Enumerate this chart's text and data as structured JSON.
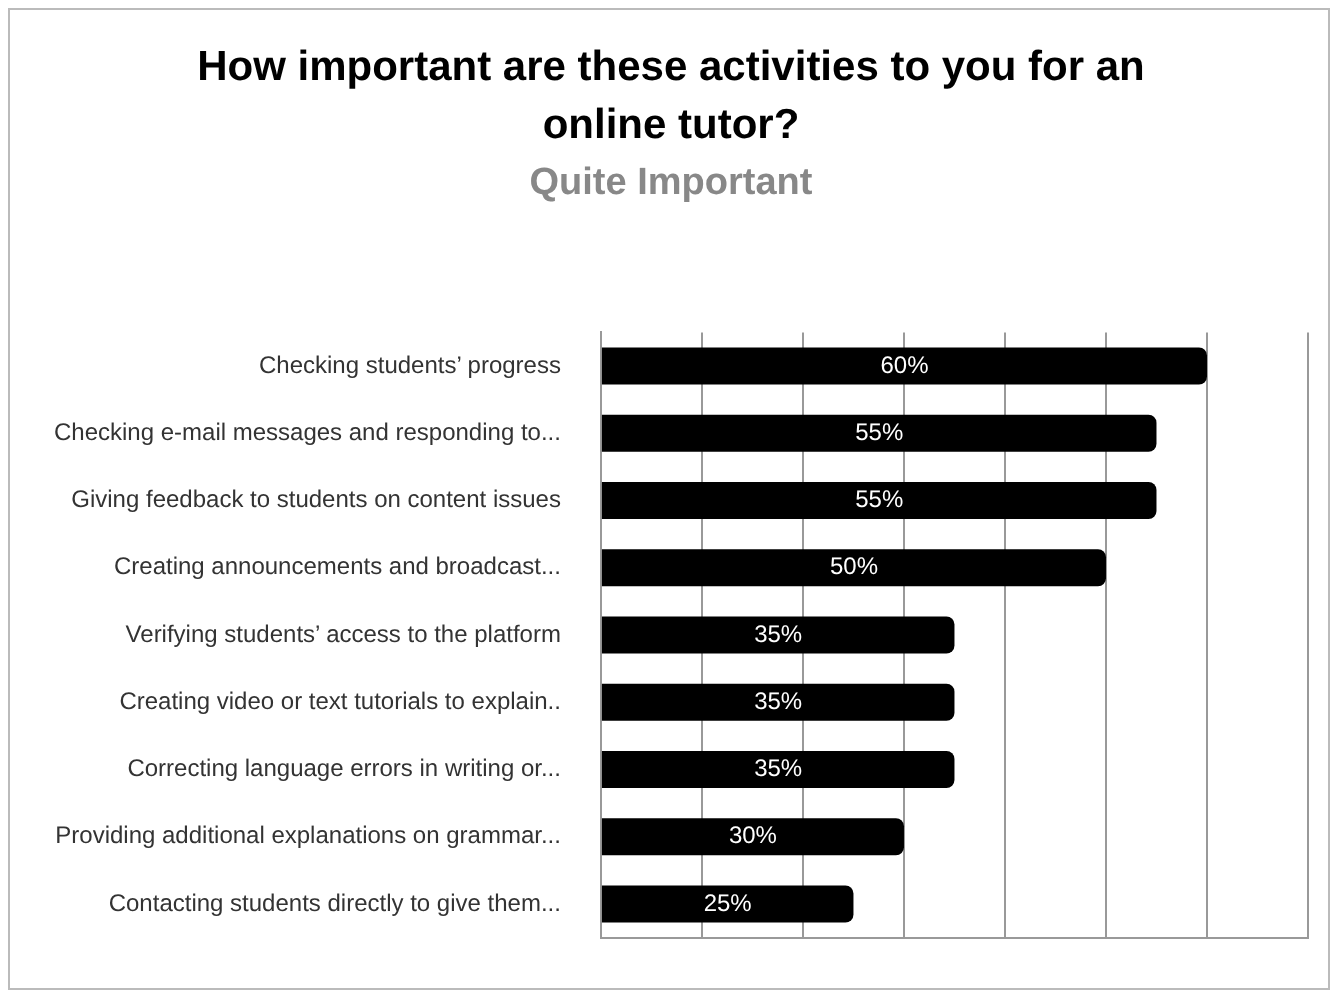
{
  "chart_data": {
    "type": "bar",
    "orientation": "horizontal",
    "title": "How important are these activities to you for an online tutor?",
    "subtitle": "Quite Important",
    "categories": [
      "Checking students’ progress",
      "Checking e-mail messages and responding to...",
      "Giving feedback to students on content issues",
      "Creating announcements and broadcast...",
      "Verifying students’ access to the platform",
      "Creating video or text tutorials to explain..",
      "Correcting language errors in writing or...",
      "Providing additional explanations on grammar...",
      "Contacting students directly to give them..."
    ],
    "values": [
      60,
      55,
      55,
      50,
      35,
      35,
      35,
      30,
      25
    ],
    "value_labels": [
      "60%",
      "55%",
      "55%",
      "50%",
      "35%",
      "35%",
      "35%",
      "30%",
      "25%"
    ],
    "color": "#000000",
    "xlim": [
      0,
      70
    ],
    "xticks": [
      {
        "value": 0,
        "label": null
      },
      {
        "value": 10,
        "label": null
      },
      {
        "value": 20,
        "label": null
      },
      {
        "value": 30,
        "label": null
      },
      {
        "value": 40,
        "label": null
      },
      {
        "value": 50,
        "label": null
      },
      {
        "value": 60,
        "label": null
      },
      {
        "value": 70,
        "label": null
      }
    ],
    "tick_labels": "y",
    "grid": "x",
    "legend": false
  }
}
